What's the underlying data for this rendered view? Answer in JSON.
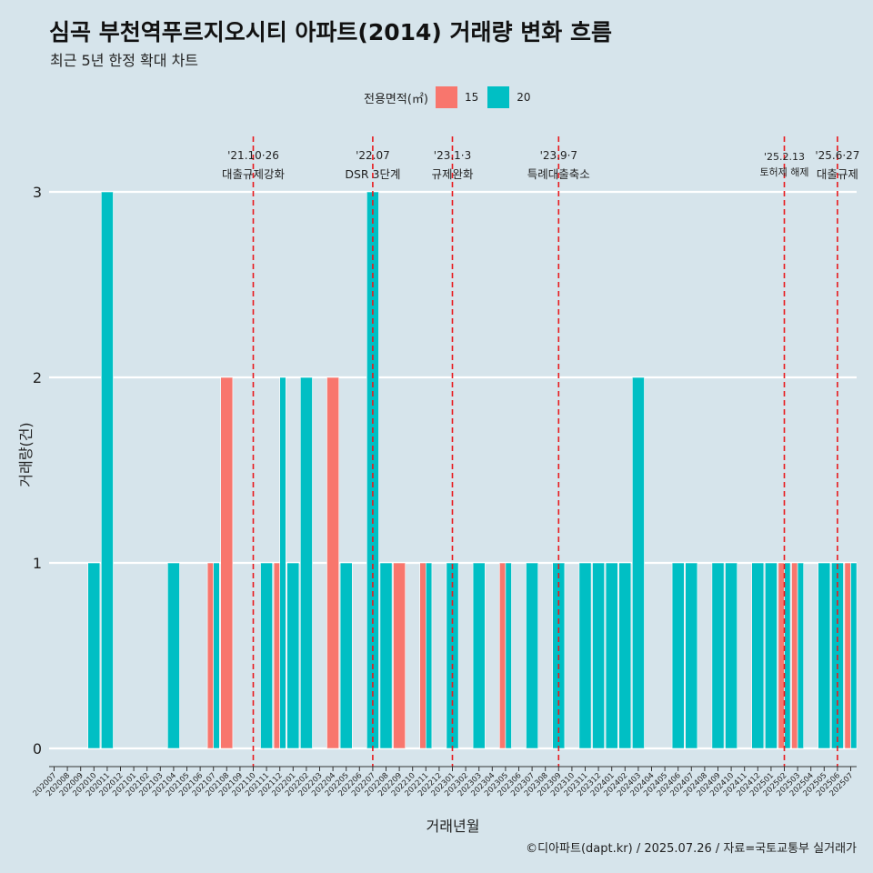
{
  "chart_data": {
    "type": "bar",
    "title": "심곡 부천역푸르지오시티 아파트(2014) 거래량 변화 흐름",
    "subtitle": "최근 5년 한정 확대 차트",
    "xlabel": "거래년월",
    "ylabel": "거래량(건)",
    "ylim": [
      0,
      3
    ],
    "yticks": [
      0,
      1,
      2,
      3
    ],
    "grid": true,
    "legend": {
      "title": "전용면적(㎡)",
      "position": "top"
    },
    "caption": "©디아파트(dapt.kr) / 2025.07.26 / 자료=국토교통부 실거래가",
    "categories": [
      "202007",
      "202008",
      "202009",
      "202010",
      "202011",
      "202012",
      "202101",
      "202102",
      "202103",
      "202104",
      "202105",
      "202106",
      "202107",
      "202108",
      "202109",
      "202110",
      "202111",
      "202112",
      "202201",
      "202202",
      "202203",
      "202204",
      "202205",
      "202206",
      "202207",
      "202208",
      "202209",
      "202210",
      "202211",
      "202212",
      "202301",
      "202302",
      "202303",
      "202304",
      "202305",
      "202306",
      "202307",
      "202308",
      "202309",
      "202310",
      "202311",
      "202312",
      "202401",
      "202402",
      "202403",
      "202404",
      "202405",
      "202406",
      "202407",
      "202408",
      "202409",
      "202410",
      "202411",
      "202412",
      "202501",
      "202502",
      "202503",
      "202504",
      "202505",
      "202506",
      "202507"
    ],
    "series": [
      {
        "name": "15",
        "color": "#f8766d",
        "values": [
          0,
          0,
          0,
          0,
          0,
          0,
          0,
          0,
          0,
          0,
          0,
          0,
          1,
          2,
          0,
          0,
          0,
          1,
          0,
          0,
          0,
          2,
          0,
          0,
          0,
          0,
          1,
          0,
          1,
          0,
          0,
          0,
          0,
          0,
          1,
          0,
          0,
          0,
          0,
          0,
          0,
          0,
          0,
          0,
          0,
          0,
          0,
          0,
          0,
          0,
          0,
          0,
          0,
          0,
          0,
          1,
          1,
          0,
          0,
          0,
          1
        ]
      },
      {
        "name": "20",
        "color": "#00bfc4",
        "values": [
          0,
          0,
          0,
          1,
          3,
          0,
          0,
          0,
          0,
          1,
          0,
          0,
          1,
          0,
          0,
          0,
          1,
          2,
          1,
          2,
          0,
          0,
          1,
          0,
          3,
          1,
          0,
          0,
          1,
          0,
          1,
          0,
          1,
          0,
          1,
          0,
          1,
          0,
          1,
          0,
          1,
          1,
          1,
          1,
          2,
          0,
          0,
          1,
          1,
          0,
          1,
          1,
          0,
          1,
          1,
          1,
          1,
          0,
          1,
          1,
          1
        ]
      }
    ],
    "events": [
      {
        "index": 15,
        "date": "'21.10·26",
        "label": "대출규제강화"
      },
      {
        "index": 24,
        "date": "'22.07",
        "label": "DSR 3단계"
      },
      {
        "index": 30,
        "date": "'23.1·3",
        "label": "규제완화"
      },
      {
        "index": 38,
        "date": "'23.9·7",
        "label": "특례대출축소"
      },
      {
        "index": 55,
        "date": "'25.2.13",
        "label": "토허제 해제"
      },
      {
        "index": 59,
        "date": "'25.6·27",
        "label": "대출규제"
      }
    ]
  }
}
